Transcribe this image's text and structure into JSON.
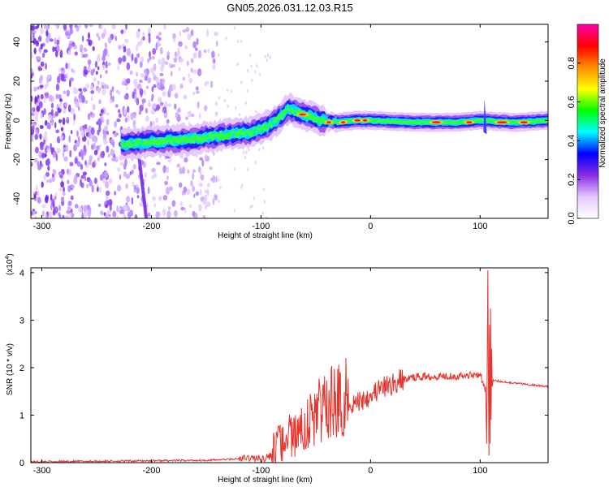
{
  "title": "GN05.2026.031.12.03.R15",
  "chart_data": [
    {
      "type": "heatmap",
      "xlabel": "Height of straight line (km)",
      "ylabel": "Frequency (Hz)",
      "xlim": [
        -310,
        162
      ],
      "ylim": [
        -50,
        49
      ],
      "xticks": [
        -300,
        -200,
        -100,
        0,
        100
      ],
      "yticks": [
        -40,
        -20,
        0,
        20,
        40
      ],
      "colorbar": {
        "label": "Normalized spectral amplitude",
        "range": [
          0,
          1
        ],
        "ticks": [
          "0.0",
          "0.2",
          "0.4",
          "0.6",
          "0.8"
        ],
        "colors": [
          "#ffffff",
          "#e6c8ff",
          "#8a2be2",
          "#0000ff",
          "#00ffff",
          "#00ff00",
          "#ffff00",
          "#ff8c00",
          "#ff0000",
          "#ff00aa"
        ]
      },
      "ridge": [
        {
          "x": -225,
          "y": -12
        },
        {
          "x": -200,
          "y": -11
        },
        {
          "x": -170,
          "y": -10
        },
        {
          "x": -140,
          "y": -8
        },
        {
          "x": -110,
          "y": -6
        },
        {
          "x": -90,
          "y": -2
        },
        {
          "x": -75,
          "y": 6
        },
        {
          "x": -62,
          "y": 3
        },
        {
          "x": -45,
          "y": 0
        },
        {
          "x": -30,
          "y": -1
        },
        {
          "x": -15,
          "y": 0
        },
        {
          "x": 0,
          "y": 0
        },
        {
          "x": 40,
          "y": -1
        },
        {
          "x": 80,
          "y": -1
        },
        {
          "x": 100,
          "y": 0
        },
        {
          "x": 130,
          "y": -1
        },
        {
          "x": 162,
          "y": 0
        }
      ]
    },
    {
      "type": "line",
      "xlabel": "Height of straight line (km)",
      "ylabel": "SNR (10 * v/v)",
      "y_multiplier": "(x10",
      "y_multiplier_exp": "4",
      "y_multiplier_close": ")",
      "xlim": [
        -310,
        162
      ],
      "ylim": [
        0,
        4.1
      ],
      "xticks": [
        -300,
        -200,
        -100,
        0,
        100
      ],
      "yticks": [
        0,
        1,
        2,
        3,
        4
      ],
      "color": "#e8322c",
      "series": [
        {
          "x": [
            -310,
            -250,
            -200,
            -150,
            -120,
            -110,
            -100,
            -90,
            -80,
            -70,
            -60,
            -50,
            -40,
            -30,
            -20,
            -10,
            0,
            10,
            20,
            30,
            40,
            50,
            60,
            70,
            80,
            90,
            95,
            100,
            105,
            107,
            108,
            109,
            110,
            112,
            115,
            130,
            162
          ],
          "y": [
            0.02,
            0.03,
            0.04,
            0.05,
            0.08,
            0.1,
            0.08,
            0.15,
            0.25,
            0.45,
            0.6,
            0.8,
            0.95,
            1.1,
            1.2,
            1.3,
            1.45,
            1.55,
            1.65,
            1.75,
            1.8,
            1.82,
            1.82,
            1.83,
            1.82,
            1.84,
            1.86,
            1.87,
            1.5,
            4.05,
            0.15,
            3.25,
            1.75,
            1.72,
            1.72,
            1.68,
            1.6
          ]
        }
      ]
    }
  ]
}
